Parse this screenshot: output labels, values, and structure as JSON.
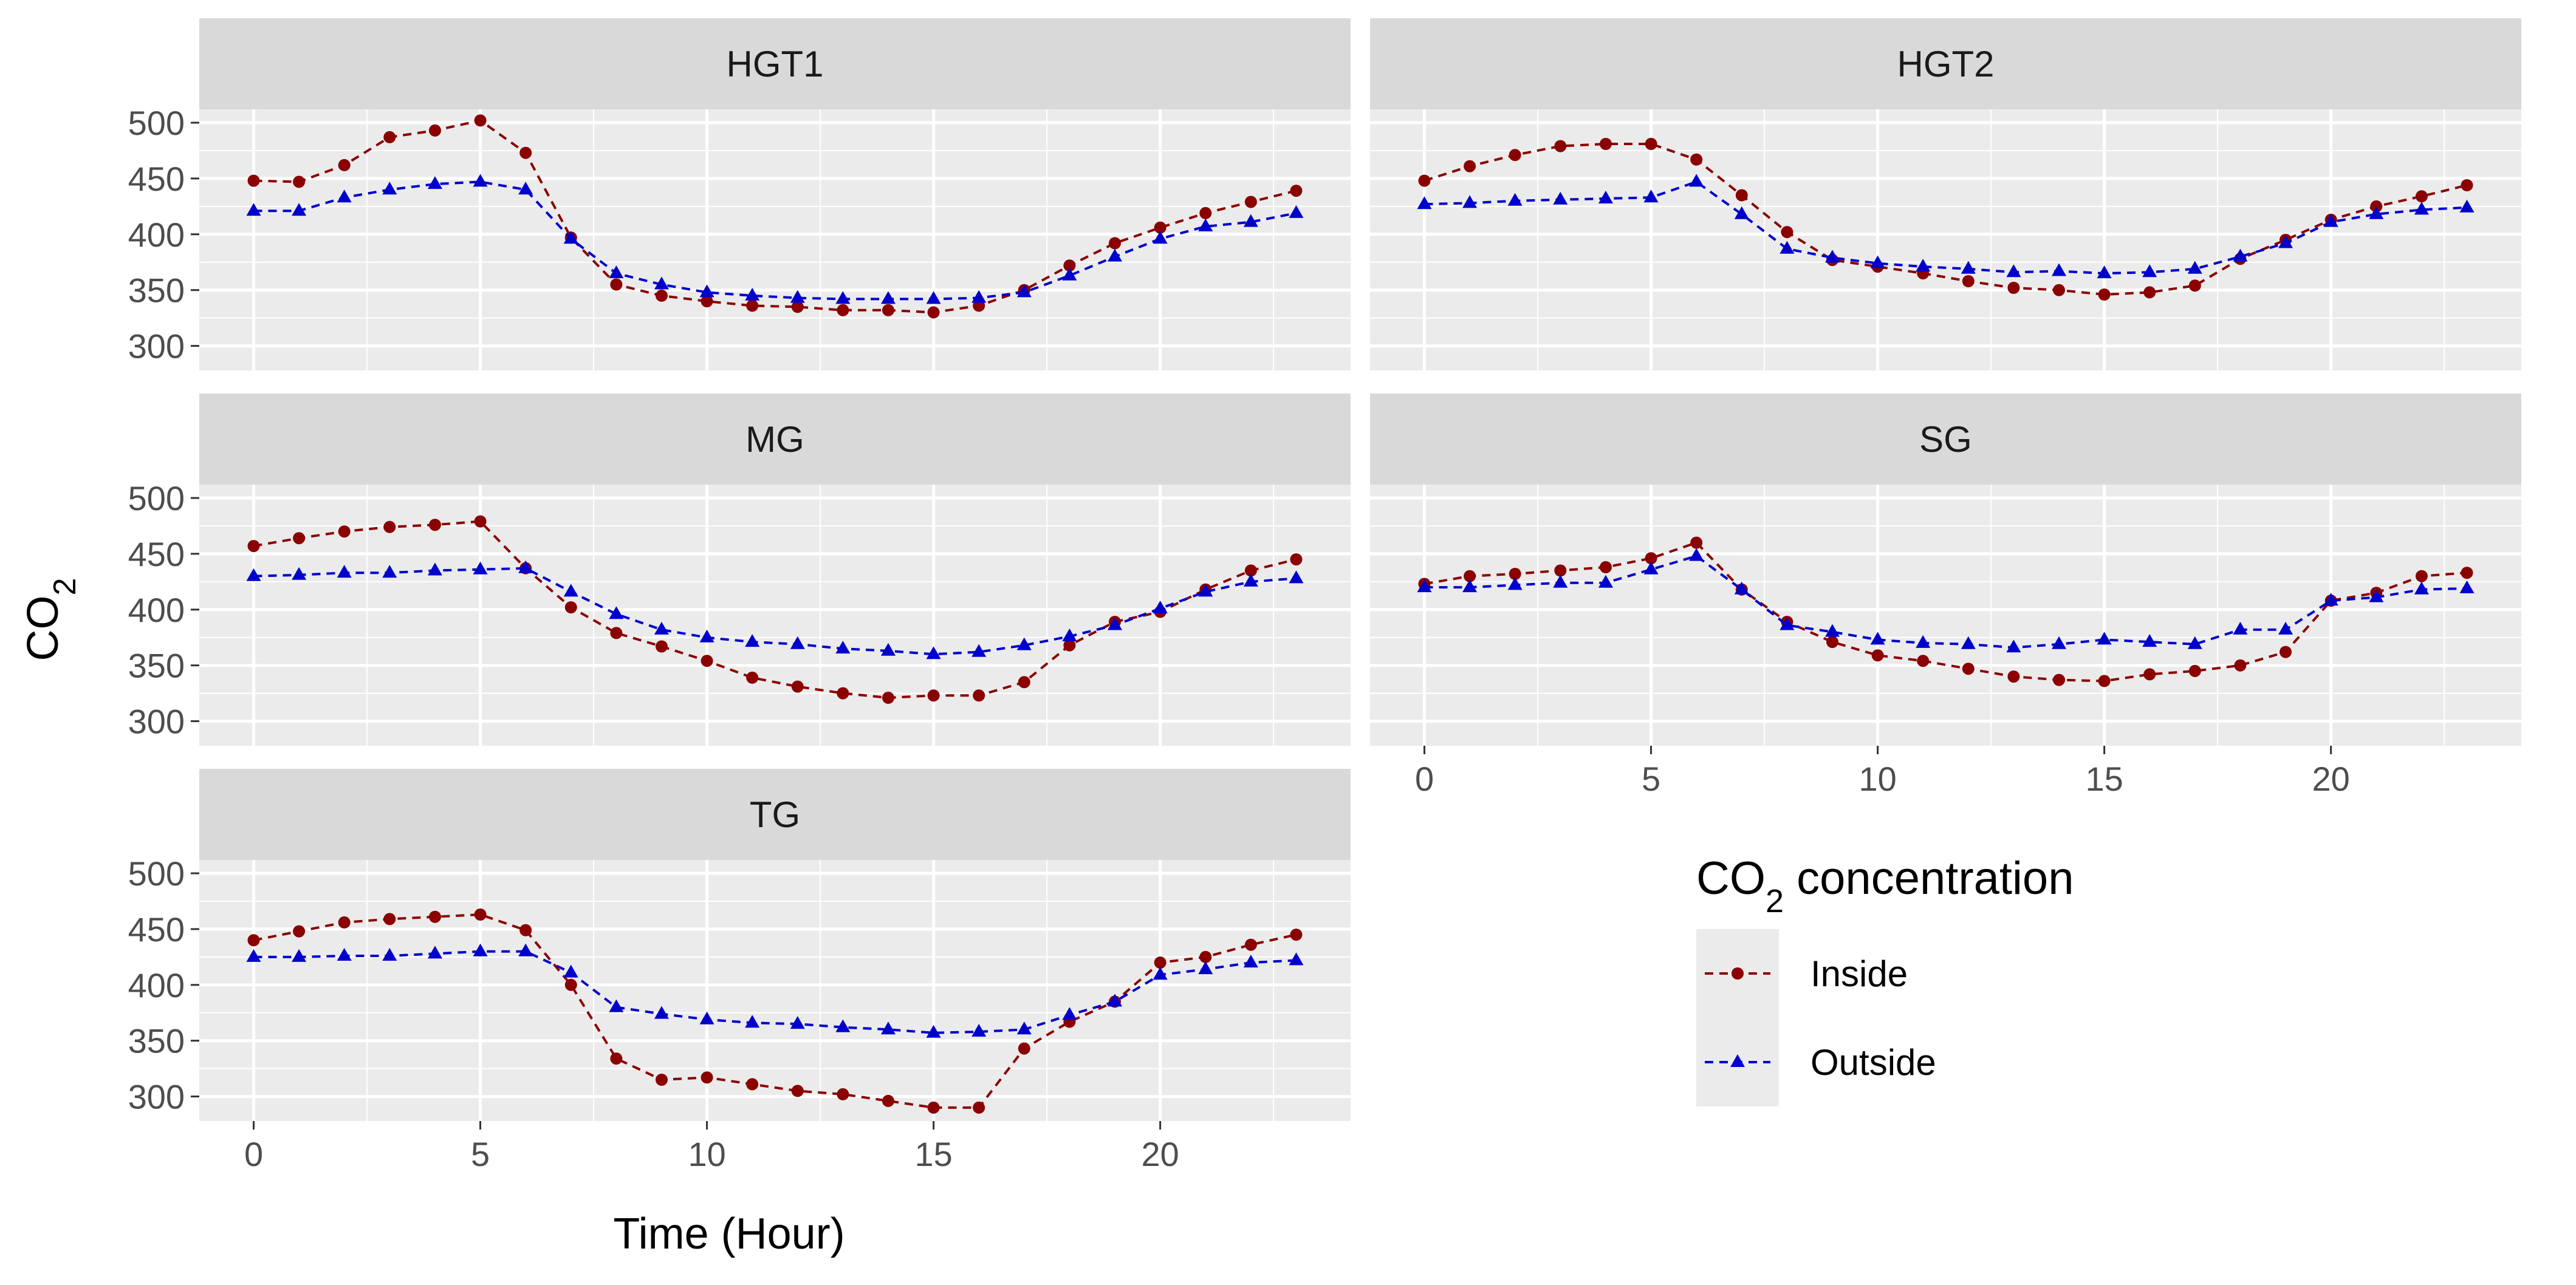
{
  "chart_data": {
    "type": "line",
    "title": "",
    "xlabel": "Time (Hour)",
    "ylabel_main": "CO",
    "ylabel_sub": "2",
    "xlim": [
      -1.2,
      24.2
    ],
    "ylim": [
      278,
      512
    ],
    "xticks": [
      0,
      5,
      10,
      15,
      20
    ],
    "yticks": [
      300,
      350,
      400,
      450,
      500
    ],
    "x": [
      0,
      1,
      2,
      3,
      4,
      5,
      6,
      7,
      8,
      9,
      10,
      11,
      12,
      13,
      14,
      15,
      16,
      17,
      18,
      19,
      20,
      21,
      22,
      23
    ],
    "legend": {
      "title_main": "CO",
      "title_sub": "2",
      "title_rest": " concentration",
      "position": "right",
      "entries": [
        {
          "name": "Inside",
          "color": "#8b0000",
          "marker": "circle"
        },
        {
          "name": "Outside",
          "color": "#0000cd",
          "marker": "triangle"
        }
      ]
    },
    "panels": [
      {
        "name": "HGT1",
        "series": [
          {
            "name": "Inside",
            "values": [
              448,
              447,
              462,
              487,
              493,
              502,
              473,
              397,
              355,
              345,
              340,
              336,
              335,
              332,
              332,
              330,
              336,
              350,
              372,
              392,
              406,
              419,
              429,
              439
            ]
          },
          {
            "name": "Outside",
            "values": [
              421,
              421,
              433,
              440,
              445,
              447,
              440,
              396,
              365,
              355,
              348,
              345,
              343,
              342,
              342,
              342,
              343,
              348,
              363,
              380,
              396,
              407,
              411,
              419
            ]
          }
        ]
      },
      {
        "name": "HGT2",
        "series": [
          {
            "name": "Inside",
            "values": [
              448,
              461,
              471,
              479,
              481,
              481,
              467,
              435,
              402,
              377,
              371,
              365,
              358,
              352,
              350,
              346,
              348,
              354,
              378,
              395,
              413,
              425,
              434,
              444
            ]
          },
          {
            "name": "Outside",
            "values": [
              427,
              428,
              430,
              431,
              432,
              433,
              447,
              418,
              387,
              379,
              374,
              371,
              369,
              366,
              367,
              365,
              366,
              369,
              380,
              392,
              411,
              418,
              422,
              424
            ]
          }
        ]
      },
      {
        "name": "MG",
        "series": [
          {
            "name": "Inside",
            "values": [
              457,
              464,
              470,
              474,
              476,
              479,
              437,
              402,
              379,
              367,
              354,
              339,
              331,
              325,
              321,
              323,
              323,
              335,
              368,
              389,
              398,
              418,
              435,
              445
            ]
          },
          {
            "name": "Outside",
            "values": [
              430,
              431,
              433,
              433,
              435,
              436,
              437,
              416,
              396,
              382,
              375,
              371,
              369,
              365,
              363,
              360,
              362,
              368,
              376,
              386,
              401,
              416,
              425,
              428
            ]
          }
        ]
      },
      {
        "name": "SG",
        "series": [
          {
            "name": "Inside",
            "values": [
              423,
              430,
              432,
              435,
              438,
              446,
              460,
              418,
              389,
              371,
              359,
              354,
              347,
              340,
              337,
              336,
              342,
              345,
              350,
              362,
              408,
              415,
              430,
              433
            ]
          },
          {
            "name": "Outside",
            "values": [
              420,
              420,
              422,
              424,
              424,
              436,
              448,
              418,
              386,
              380,
              373,
              370,
              369,
              366,
              369,
              373,
              371,
              369,
              382,
              382,
              408,
              411,
              418,
              419
            ]
          }
        ]
      },
      {
        "name": "TG",
        "series": [
          {
            "name": "Inside",
            "values": [
              440,
              448,
              456,
              459,
              461,
              463,
              449,
              400,
              334,
              315,
              317,
              311,
              305,
              302,
              296,
              290,
              290,
              343,
              367,
              385,
              420,
              425,
              436,
              445
            ]
          },
          {
            "name": "Outside",
            "values": [
              425,
              425,
              426,
              426,
              428,
              430,
              430,
              411,
              380,
              374,
              369,
              366,
              365,
              362,
              360,
              357,
              358,
              360,
              373,
              385,
              409,
              414,
              420,
              422
            ]
          }
        ]
      }
    ]
  }
}
